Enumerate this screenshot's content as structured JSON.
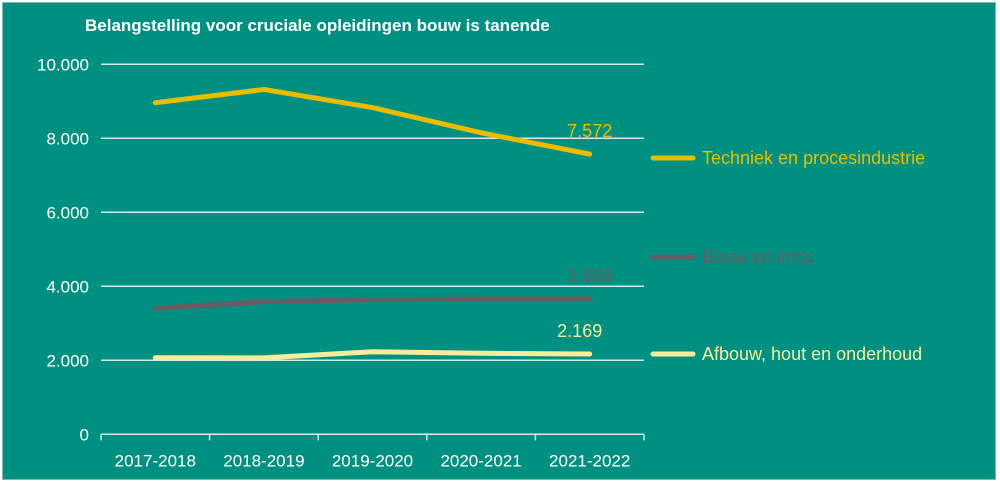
{
  "chart_data": {
    "type": "line",
    "title": "Belangstelling voor cruciale opleidingen bouw is tanende",
    "categories": [
      "2017-2018",
      "2018-2019",
      "2019-2020",
      "2020-2021",
      "2021-2022"
    ],
    "ylim": [
      0,
      10000
    ],
    "yticks": [
      "0",
      "2.000",
      "4.000",
      "6.000",
      "8.000",
      "10.000"
    ],
    "ytick_values": [
      0,
      2000,
      4000,
      6000,
      8000,
      10000
    ],
    "grid": true,
    "legend_placement": "right",
    "series": [
      {
        "name": "Techniek en procesindustrie",
        "color": "#e8bd00",
        "values": [
          8960,
          9320,
          8830,
          8150,
          7572
        ],
        "end_label": "7.572"
      },
      {
        "name": "Bouw en infra",
        "color": "#6b5a64",
        "values": [
          3405,
          3585,
          3640,
          3657,
          3659
        ],
        "end_label": "3.659"
      },
      {
        "name": "Afbouw, hout en onderhoud",
        "color": "#f8ec9a",
        "values": [
          2070,
          2065,
          2232,
          2189,
          2169
        ],
        "end_label": "2.169"
      }
    ],
    "background": "#009082"
  }
}
